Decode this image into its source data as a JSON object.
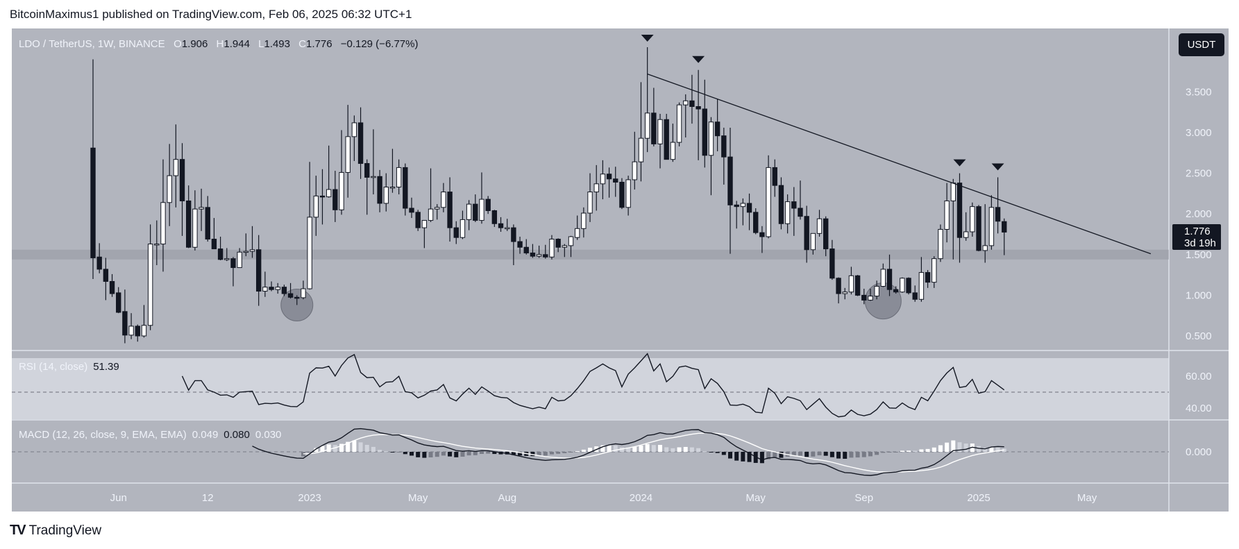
{
  "publish_header": "BitcoinMaximus1 published on TradingView.com, Feb 06, 2025 06:32 UTC+1",
  "legend": {
    "symbol": "LDO / TetherUS, 1W, BINANCE",
    "o_label": "O",
    "open": "1.906",
    "h_label": "H",
    "high": "1.944",
    "l_label": "L",
    "low": "1.493",
    "c_label": "C",
    "close": "1.776",
    "change": "−0.129 (−6.77%)"
  },
  "currency_button": "USDT",
  "last_price": {
    "price": "1.776",
    "countdown": "3d 19h"
  },
  "rsi_legend": {
    "label": "RSI (14, close)",
    "value": "51.39"
  },
  "macd_legend": {
    "label": "MACD (12, 26, close, 9, EMA, EMA)",
    "histogram": "0.049",
    "macd": "0.080",
    "signal": "0.030"
  },
  "footer_logo": {
    "mark": "TV",
    "text": "TradingView"
  },
  "colors": {
    "background": "#b2b5be",
    "rsi_band": "#d1d4dc",
    "up_candle": "#ffffff",
    "down_candle": "#131722",
    "support_zone": "#9598a1",
    "macd_line": "#131722",
    "signal_line": "#ffffff",
    "hist_grow_above": "#ffffff",
    "hist_fall_above": "#d1d4dc",
    "hist_grow_below": "#787b86",
    "hist_fall_below": "#131722"
  },
  "chart_data": {
    "type": "candlestick",
    "title": "LDO / TetherUS, 1W, BINANCE",
    "ohlc_columns": [
      "date",
      "open",
      "high",
      "low",
      "close"
    ],
    "ohlc": [
      [
        "2022-05-09",
        2.81,
        3.9,
        1.2,
        1.46
      ],
      [
        "2022-05-16",
        1.47,
        1.64,
        1.27,
        1.32
      ],
      [
        "2022-05-23",
        1.32,
        1.46,
        0.94,
        1.17
      ],
      [
        "2022-05-30",
        1.17,
        1.26,
        0.98,
        1.02
      ],
      [
        "2022-06-06",
        1.03,
        1.1,
        0.78,
        0.79
      ],
      [
        "2022-06-13",
        0.8,
        1.07,
        0.41,
        0.51
      ],
      [
        "2022-06-20",
        0.51,
        0.78,
        0.46,
        0.62
      ],
      [
        "2022-06-27",
        0.62,
        0.64,
        0.43,
        0.5
      ],
      [
        "2022-07-04",
        0.5,
        0.88,
        0.48,
        0.63
      ],
      [
        "2022-07-11",
        0.63,
        1.87,
        0.57,
        1.63
      ],
      [
        "2022-07-18",
        1.62,
        1.92,
        1.37,
        1.63
      ],
      [
        "2022-07-25",
        1.63,
        2.67,
        1.29,
        2.14
      ],
      [
        "2022-08-01",
        2.14,
        2.86,
        1.85,
        2.47
      ],
      [
        "2022-08-08",
        2.47,
        3.1,
        2.08,
        2.67
      ],
      [
        "2022-08-15",
        2.67,
        2.87,
        1.73,
        2.16
      ],
      [
        "2022-08-22",
        2.16,
        2.35,
        1.58,
        1.59
      ],
      [
        "2022-08-29",
        1.59,
        2.29,
        1.55,
        2.06
      ],
      [
        "2022-09-05",
        2.06,
        2.31,
        1.79,
        2.08
      ],
      [
        "2022-09-12",
        2.08,
        2.22,
        1.66,
        1.69
      ],
      [
        "2022-09-19",
        1.69,
        1.95,
        1.57,
        1.57
      ],
      [
        "2022-09-26",
        1.57,
        1.72,
        1.43,
        1.44
      ],
      [
        "2022-10-03",
        1.44,
        1.58,
        1.42,
        1.45
      ],
      [
        "2022-10-10",
        1.45,
        1.47,
        1.11,
        1.34
      ],
      [
        "2022-10-17",
        1.34,
        1.58,
        1.34,
        1.53
      ],
      [
        "2022-10-24",
        1.53,
        1.76,
        1.48,
        1.54
      ],
      [
        "2022-10-31",
        1.54,
        1.85,
        1.46,
        1.56
      ],
      [
        "2022-11-07",
        1.56,
        1.74,
        0.87,
        1.05
      ],
      [
        "2022-11-14",
        1.05,
        1.29,
        0.98,
        1.1
      ],
      [
        "2022-11-21",
        1.1,
        1.17,
        1.05,
        1.07
      ],
      [
        "2022-11-28",
        1.07,
        1.15,
        1.02,
        1.1
      ],
      [
        "2022-12-05",
        1.1,
        1.13,
        0.99,
        1.02
      ],
      [
        "2022-12-12",
        1.02,
        1.15,
        0.96,
        0.975
      ],
      [
        "2022-12-19",
        0.975,
        1.0,
        0.88,
        0.97
      ],
      [
        "2022-12-26",
        0.97,
        1.18,
        0.95,
        1.08
      ],
      [
        "2023-01-02",
        1.08,
        2.64,
        1.07,
        1.96
      ],
      [
        "2023-01-09",
        1.96,
        2.47,
        1.73,
        2.22
      ],
      [
        "2023-01-16",
        2.22,
        2.55,
        1.87,
        2.21
      ],
      [
        "2023-01-23",
        2.21,
        2.84,
        2.2,
        2.3
      ],
      [
        "2023-01-30",
        2.3,
        2.53,
        1.9,
        2.05
      ],
      [
        "2023-02-06",
        2.05,
        3.03,
        1.99,
        2.51
      ],
      [
        "2023-02-13",
        2.51,
        3.34,
        2.2,
        2.95
      ],
      [
        "2023-02-20",
        2.95,
        3.21,
        2.65,
        3.12
      ],
      [
        "2023-02-27",
        3.12,
        3.31,
        2.43,
        2.62
      ],
      [
        "2023-03-06",
        2.62,
        2.67,
        1.99,
        2.45
      ],
      [
        "2023-03-13",
        2.45,
        3.04,
        2.24,
        2.46
      ],
      [
        "2023-03-20",
        2.46,
        2.54,
        2.02,
        2.13
      ],
      [
        "2023-03-27",
        2.13,
        2.5,
        2.03,
        2.33
      ],
      [
        "2023-04-03",
        2.33,
        2.8,
        2.26,
        2.33
      ],
      [
        "2023-04-10",
        2.33,
        2.67,
        2.24,
        2.57
      ],
      [
        "2023-04-17",
        2.57,
        2.62,
        1.98,
        2.07
      ],
      [
        "2023-04-24",
        2.07,
        2.2,
        1.95,
        2.02
      ],
      [
        "2023-05-01",
        2.02,
        2.05,
        1.79,
        1.83
      ],
      [
        "2023-05-08",
        1.83,
        1.89,
        1.58,
        1.92
      ],
      [
        "2023-05-15",
        1.92,
        2.56,
        1.9,
        2.06
      ],
      [
        "2023-05-22",
        2.06,
        2.12,
        1.93,
        2.08
      ],
      [
        "2023-05-29",
        2.08,
        2.38,
        2.02,
        2.27
      ],
      [
        "2023-06-05",
        2.27,
        2.45,
        1.66,
        1.83
      ],
      [
        "2023-06-12",
        1.83,
        1.91,
        1.63,
        1.71
      ],
      [
        "2023-06-19",
        1.71,
        2.04,
        1.69,
        1.93
      ],
      [
        "2023-06-26",
        1.93,
        2.17,
        1.8,
        2.12
      ],
      [
        "2023-07-03",
        2.12,
        2.24,
        1.9,
        1.92
      ],
      [
        "2023-07-10",
        1.92,
        2.51,
        1.88,
        2.18
      ],
      [
        "2023-07-17",
        2.18,
        2.22,
        2.0,
        2.04
      ],
      [
        "2023-07-24",
        2.04,
        2.05,
        1.84,
        1.88
      ],
      [
        "2023-07-31",
        1.88,
        1.96,
        1.78,
        1.83
      ],
      [
        "2023-08-07",
        1.83,
        1.94,
        1.79,
        1.83
      ],
      [
        "2023-08-14",
        1.83,
        1.87,
        1.37,
        1.66
      ],
      [
        "2023-08-21",
        1.66,
        1.72,
        1.51,
        1.59
      ],
      [
        "2023-08-28",
        1.59,
        1.69,
        1.5,
        1.52
      ],
      [
        "2023-09-04",
        1.52,
        1.63,
        1.46,
        1.48
      ],
      [
        "2023-09-11",
        1.48,
        1.61,
        1.46,
        1.5
      ],
      [
        "2023-09-18",
        1.5,
        1.62,
        1.45,
        1.47
      ],
      [
        "2023-09-25",
        1.47,
        1.74,
        1.44,
        1.69
      ],
      [
        "2023-10-02",
        1.69,
        1.7,
        1.53,
        1.59
      ],
      [
        "2023-10-09",
        1.59,
        1.63,
        1.47,
        1.61
      ],
      [
        "2023-10-16",
        1.61,
        1.73,
        1.47,
        1.72
      ],
      [
        "2023-10-23",
        1.71,
        1.98,
        1.68,
        1.82
      ],
      [
        "2023-10-30",
        1.82,
        2.08,
        1.71,
        2.01
      ],
      [
        "2023-11-06",
        2.01,
        2.5,
        1.9,
        2.27
      ],
      [
        "2023-11-13",
        2.27,
        2.6,
        2.04,
        2.37
      ],
      [
        "2023-11-20",
        2.37,
        2.66,
        2.18,
        2.49
      ],
      [
        "2023-11-27",
        2.49,
        2.57,
        2.2,
        2.43
      ],
      [
        "2023-12-04",
        2.43,
        2.58,
        2.21,
        2.39
      ],
      [
        "2023-12-11",
        2.39,
        2.44,
        2.06,
        2.08
      ],
      [
        "2023-12-18",
        2.08,
        2.47,
        1.98,
        2.42
      ],
      [
        "2023-12-25",
        2.42,
        3.01,
        2.3,
        2.64
      ],
      [
        "2024-01-01",
        2.64,
        3.62,
        2.4,
        2.93
      ],
      [
        "2024-01-08",
        2.93,
        4.05,
        2.76,
        3.24
      ],
      [
        "2024-01-15",
        3.24,
        3.55,
        2.83,
        2.86
      ],
      [
        "2024-01-22",
        2.86,
        3.23,
        2.56,
        3.16
      ],
      [
        "2024-01-29",
        3.16,
        3.23,
        2.67,
        2.67
      ],
      [
        "2024-02-05",
        2.67,
        3.11,
        2.64,
        2.88
      ],
      [
        "2024-02-12",
        2.88,
        3.37,
        2.83,
        3.34
      ],
      [
        "2024-02-19",
        3.34,
        3.47,
        2.94,
        3.39
      ],
      [
        "2024-02-26",
        3.39,
        3.71,
        3.11,
        3.32
      ],
      [
        "2024-03-04",
        3.32,
        3.77,
        2.66,
        3.29
      ],
      [
        "2024-03-11",
        3.29,
        3.65,
        2.57,
        2.72
      ],
      [
        "2024-03-18",
        2.72,
        3.19,
        2.23,
        3.13
      ],
      [
        "2024-03-25",
        3.13,
        3.41,
        2.77,
        2.96
      ],
      [
        "2024-04-01",
        2.96,
        3.06,
        2.36,
        2.7
      ],
      [
        "2024-04-08",
        2.7,
        3.06,
        1.51,
        2.11
      ],
      [
        "2024-04-15",
        2.11,
        2.16,
        1.82,
        2.09
      ],
      [
        "2024-04-22",
        2.09,
        2.19,
        1.86,
        2.13
      ],
      [
        "2024-04-29",
        2.13,
        2.25,
        1.8,
        2.02
      ],
      [
        "2024-05-06",
        2.02,
        2.07,
        1.75,
        1.77
      ],
      [
        "2024-05-13",
        1.77,
        1.85,
        1.52,
        1.72
      ],
      [
        "2024-05-20",
        1.72,
        2.72,
        1.7,
        2.57
      ],
      [
        "2024-05-27",
        2.57,
        2.67,
        2.21,
        2.35
      ],
      [
        "2024-06-03",
        2.35,
        2.45,
        1.81,
        1.88
      ],
      [
        "2024-06-10",
        1.88,
        2.24,
        1.76,
        2.15
      ],
      [
        "2024-06-17",
        2.15,
        2.33,
        1.73,
        2.07
      ],
      [
        "2024-06-24",
        2.07,
        2.41,
        1.93,
        1.97
      ],
      [
        "2024-07-01",
        1.97,
        2.1,
        1.4,
        1.56
      ],
      [
        "2024-07-08",
        1.56,
        1.76,
        1.5,
        1.76
      ],
      [
        "2024-07-15",
        1.76,
        2.05,
        1.72,
        1.94
      ],
      [
        "2024-07-22",
        1.94,
        1.97,
        1.48,
        1.57
      ],
      [
        "2024-07-29",
        1.57,
        1.68,
        1.19,
        1.21
      ],
      [
        "2024-08-05",
        1.21,
        1.22,
        0.9,
        1.02
      ],
      [
        "2024-08-12",
        1.02,
        1.09,
        0.95,
        1.04
      ],
      [
        "2024-08-19",
        1.04,
        1.35,
        1.01,
        1.24
      ],
      [
        "2024-08-26",
        1.24,
        1.25,
        0.99,
        1.0
      ],
      [
        "2024-09-02",
        1.0,
        1.08,
        0.89,
        0.94
      ],
      [
        "2024-09-09",
        0.94,
        1.08,
        0.93,
        0.99
      ],
      [
        "2024-09-16",
        0.99,
        1.18,
        0.95,
        1.11
      ],
      [
        "2024-09-23",
        1.11,
        1.39,
        1.1,
        1.32
      ],
      [
        "2024-09-30",
        1.32,
        1.5,
        0.99,
        1.07
      ],
      [
        "2024-10-07",
        1.07,
        1.11,
        1.02,
        1.04
      ],
      [
        "2024-10-14",
        1.04,
        1.22,
        1.03,
        1.21
      ],
      [
        "2024-10-21",
        1.21,
        1.22,
        1.01,
        1.03
      ],
      [
        "2024-10-28",
        1.03,
        1.12,
        0.92,
        0.95
      ],
      [
        "2024-11-04",
        0.95,
        1.47,
        0.92,
        1.28
      ],
      [
        "2024-11-11",
        1.28,
        1.31,
        1.09,
        1.16
      ],
      [
        "2024-11-18",
        1.16,
        1.48,
        1.09,
        1.45
      ],
      [
        "2024-11-25",
        1.45,
        1.87,
        1.41,
        1.81
      ],
      [
        "2024-12-02",
        1.81,
        2.38,
        1.65,
        2.16
      ],
      [
        "2024-12-09",
        2.16,
        2.43,
        1.44,
        2.38
      ],
      [
        "2024-12-16",
        2.38,
        2.5,
        1.4,
        1.71
      ],
      [
        "2024-12-23",
        1.71,
        2.02,
        1.67,
        1.78
      ],
      [
        "2024-12-30",
        1.78,
        2.14,
        1.72,
        2.09
      ],
      [
        "2025-01-06",
        2.09,
        2.11,
        1.54,
        1.55
      ],
      [
        "2025-01-13",
        1.55,
        2.12,
        1.4,
        1.61
      ],
      [
        "2025-01-20",
        1.61,
        2.23,
        1.56,
        2.08
      ],
      [
        "2025-01-27",
        2.08,
        2.45,
        1.76,
        1.91
      ],
      [
        "2025-02-03",
        1.906,
        1.944,
        1.493,
        1.776
      ]
    ],
    "price_axis": {
      "unit": "USDT",
      "ticks": [
        "3.500",
        "3.000",
        "2.500",
        "2.000",
        "1.500",
        "1.000",
        "0.500"
      ],
      "scale": "linear"
    },
    "time_axis": {
      "ticks": [
        {
          "label": "Jun",
          "date": "2022-06-06"
        },
        {
          "label": "12",
          "date": "2022-09-12"
        },
        {
          "label": "2023",
          "date": "2023-01-02"
        },
        {
          "label": "May",
          "date": "2023-05-01"
        },
        {
          "label": "Aug",
          "date": "2023-08-07"
        },
        {
          "label": "2024",
          "date": "2024-01-01"
        },
        {
          "label": "May",
          "date": "2024-05-06"
        },
        {
          "label": "Sep",
          "date": "2024-09-02"
        },
        {
          "label": "2025",
          "date": "2025-01-06"
        },
        {
          "label": "May",
          "date": "2025-05-05"
        }
      ]
    },
    "grid": false,
    "annotations": {
      "trendline": {
        "start": {
          "date": "2024-01-08",
          "price": 3.72
        },
        "end": {
          "date": "2025-07-14",
          "price": 1.51
        }
      },
      "top_markers": [
        "2024-01-08",
        "2024-03-04",
        "2024-12-16",
        "2025-01-27"
      ],
      "circles": [
        {
          "date": "2022-12-19",
          "price": 0.88
        },
        {
          "date": "2024-09-23",
          "price": 0.93
        }
      ],
      "support_zone": {
        "low": 1.44,
        "high": 1.56
      }
    },
    "indicators": {
      "rsi": {
        "length": 14,
        "source": "close",
        "ticks": [
          "60.00",
          "40.00"
        ],
        "midline": 50,
        "band": [
          30,
          70
        ],
        "values": [
          null,
          null,
          null,
          null,
          null,
          null,
          null,
          null,
          null,
          null,
          null,
          null,
          null,
          null,
          60.1,
          51.2,
          57.2,
          57.2,
          51.4,
          50.0,
          48.1,
          48.3,
          46.8,
          50.0,
          50.3,
          50.6,
          42.2,
          43.0,
          42.8,
          43.2,
          41.9,
          41.0,
          40.9,
          43.9,
          61.9,
          65.2,
          65.1,
          66.2,
          60.1,
          66.7,
          71.4,
          73.5,
          62.3,
          59.1,
          59.3,
          53.3,
          56.2,
          56.5,
          59.9,
          50.3,
          49.6,
          46.4,
          48.1,
          50.7,
          51.4,
          54.8,
          46.4,
          44.5,
          48.8,
          52.5,
          48.6,
          53.3,
          50.7,
          47.8,
          46.7,
          46.4,
          43.5,
          41.7,
          40.6,
          39.6,
          40.6,
          39.6,
          46.8,
          44.5,
          44.9,
          47.8,
          52.2,
          57.2,
          63.0,
          65.2,
          67.7,
          65.2,
          63.5,
          53.3,
          61.3,
          65.2,
          69.6,
          74.1,
          63.3,
          67.7,
          56.5,
          59.9,
          65.7,
          66.4,
          64.9,
          64.1,
          52.2,
          58.4,
          55.5,
          50.3,
          41.9,
          41.7,
          42.5,
          40.9,
          37.5,
          37.0,
          52.5,
          49.3,
          42.8,
          47.1,
          46.1,
          44.6,
          39.1,
          42.5,
          45.9,
          40.6,
          36.7,
          34.5,
          35.1,
          38.8,
          36.1,
          35.2,
          36.2,
          39.1,
          43.9,
          40.1,
          39.9,
          43.2,
          40.6,
          39.1,
          46.8,
          44.6,
          50.7,
          57.2,
          62.0,
          65.5,
          52.9,
          53.6,
          58.0,
          49.3,
          50.3,
          57.2,
          54.3,
          51.39
        ]
      },
      "macd": {
        "fast": 12,
        "slow": 26,
        "signal": 9,
        "source": "close",
        "ticks": [
          "0.000"
        ]
      }
    }
  }
}
